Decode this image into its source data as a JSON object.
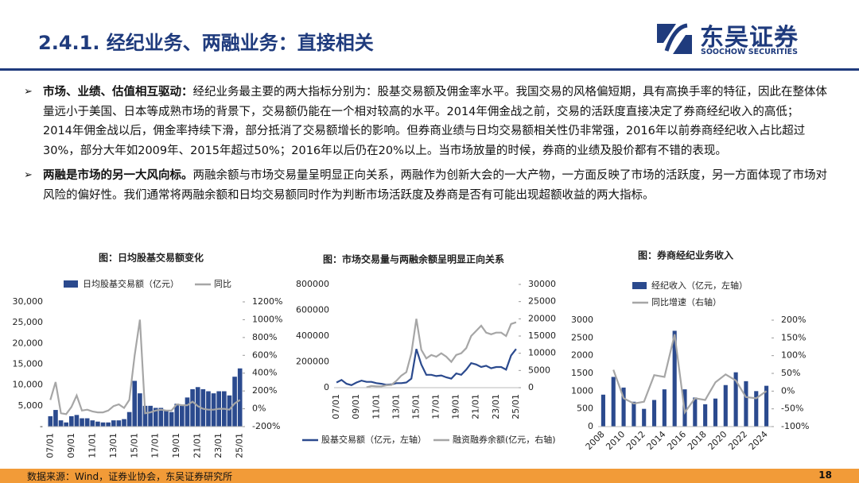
{
  "header": {
    "title": "2.4.1. 经纪业务、两融业务：直接相关",
    "logo": "东吴证券",
    "logo_en": "SOOCHOW SECURITIES"
  },
  "bullets": [
    {
      "lead": "市场、业绩、估值相互驱动：",
      "text": "经纪业务最主要的两大指标分别为：股基交易额及佣金率水平。我国交易的风格偏短期，具有高换手率的特征，因此在整体体量远小于美国、日本等成熟市场的背景下，交易额仍能在一个相对较高的水平。2014年佣金战之前，交易的活跃度直接决定了券商经纪收入的高低；2014年佣金战以后，佣金率持续下滑，部分抵消了交易额增长的影响。但券商业绩与日均交易额相关性仍非常强，2016年以前券商经纪收入占比超过30%，部分大年如2009年、2015年超过50%；2016年以后仍在20%以上。当市场放量的时候，券商的业绩及股价都有不错的表现。"
    },
    {
      "lead": "两融是市场的另一大风向标。",
      "text": "两融余额与市场交易量呈明显正向关系，两融作为创新大会的一大产物，一方面反映了市场的活跃度，另一方面体现了市场对风险的偏好性。我们通常将两融余额和日均交易额同时作为判断市场活跃度及券商是否有可能出现超额收益的两大指标。"
    }
  ],
  "chart_data": [
    {
      "type": "bar",
      "title": "图：日均股基交易额变化",
      "categories": [
        "07/01",
        null,
        null,
        null,
        "09/01",
        null,
        null,
        null,
        "11/01",
        null,
        null,
        null,
        "13/01",
        null,
        null,
        null,
        "15/01",
        null,
        null,
        null,
        "17/01",
        null,
        null,
        null,
        "19/01",
        null,
        null,
        null,
        "21/01",
        null,
        null,
        null,
        "23/01",
        null,
        null,
        null,
        "25/01"
      ],
      "series": [
        {
          "name": "日均股基交易额（亿元）",
          "type": "bar",
          "color": "#2b4a8e",
          "values": [
            2500,
            4000,
            1500,
            1000,
            2500,
            2800,
            2000,
            2000,
            1500,
            1200,
            1000,
            1000,
            1500,
            1500,
            1800,
            3500,
            11000,
            8000,
            5000,
            5000,
            4500,
            4500,
            3800,
            3500,
            5500,
            5000,
            7000,
            9000,
            9500,
            9000,
            8500,
            8000,
            8500,
            8500,
            7500,
            12000,
            14000
          ]
        },
        {
          "name": "同比",
          "type": "line",
          "axis": "y2",
          "color": "#a6a6a6",
          "values": [
            100,
            300,
            -50,
            -60,
            20,
            150,
            -20,
            -10,
            -30,
            -40,
            -40,
            -20,
            30,
            50,
            10,
            100,
            600,
            1000,
            -50,
            -40,
            -20,
            -10,
            -20,
            -20,
            50,
            40,
            40,
            80,
            30,
            0,
            -10,
            -10,
            0,
            0,
            -10,
            60,
            100
          ]
        }
      ],
      "ylim": [
        0,
        30000
      ],
      "yticks": [
        {
          "value": 0,
          "label": "-"
        },
        {
          "value": 5000,
          "label": "5,000"
        },
        {
          "value": 10000,
          "label": "10,000"
        },
        {
          "value": 15000,
          "label": "15,000"
        },
        {
          "value": 20000,
          "label": "20,000"
        },
        {
          "value": 25000,
          "label": "25,000"
        },
        {
          "value": 30000,
          "label": "30,000"
        }
      ],
      "y2lim": [
        -200,
        1200
      ],
      "y2ticks": [
        {
          "value": -200,
          "label": "-200%"
        },
        {
          "value": 0,
          "label": "0%"
        },
        {
          "value": 200,
          "label": "200%"
        },
        {
          "value": 400,
          "label": "400%"
        },
        {
          "value": 600,
          "label": "600%"
        },
        {
          "value": 800,
          "label": "800%"
        },
        {
          "value": 1000,
          "label": "1000%"
        },
        {
          "value": 1200,
          "label": "1200%"
        }
      ]
    },
    {
      "type": "line",
      "title": "图：市场交易量与两融余额呈明显正向关系",
      "categories": [
        "07/01",
        null,
        null,
        null,
        "09/01",
        null,
        null,
        null,
        "11/01",
        null,
        null,
        null,
        "13/01",
        null,
        null,
        null,
        "15/01",
        null,
        null,
        null,
        "17/01",
        null,
        null,
        null,
        "19/01",
        null,
        null,
        null,
        "21/01",
        null,
        null,
        null,
        "23/01",
        null,
        null,
        null,
        "25/01"
      ],
      "series": [
        {
          "name": "股基交易额（亿元，左轴）",
          "type": "line",
          "color": "#2b4a8e",
          "values": [
            40000,
            60000,
            30000,
            20000,
            40000,
            55000,
            45000,
            45000,
            35000,
            30000,
            22000,
            25000,
            35000,
            35000,
            40000,
            70000,
            300000,
            180000,
            100000,
            100000,
            90000,
            95000,
            80000,
            70000,
            110000,
            100000,
            140000,
            190000,
            180000,
            160000,
            170000,
            150000,
            160000,
            160000,
            140000,
            250000,
            300000
          ]
        },
        {
          "name": "融资融券余额(亿元，右轴)",
          "type": "line",
          "axis": "y2",
          "color": "#a6a6a6",
          "values": [
            null,
            null,
            null,
            null,
            null,
            null,
            100,
            500,
            400,
            400,
            700,
            800,
            2000,
            3500,
            4500,
            10000,
            20000,
            11000,
            8500,
            9500,
            9000,
            10000,
            9000,
            7500,
            9500,
            10000,
            11500,
            15000,
            16500,
            18000,
            16000,
            15500,
            16000,
            16000,
            15000,
            18500,
            19000
          ]
        }
      ],
      "ylim": [
        0,
        800000
      ],
      "yticks": [
        0,
        200000,
        400000,
        600000,
        800000
      ],
      "y2lim": [
        0,
        30000
      ],
      "y2ticks": [
        0,
        5000,
        10000,
        15000,
        20000,
        25000,
        30000
      ]
    },
    {
      "type": "bar",
      "title": "图：券商经纪业务收入",
      "categories": [
        "2008",
        null,
        "2010",
        null,
        "2012",
        null,
        "2014",
        null,
        "2016",
        null,
        "2018",
        null,
        "2020",
        null,
        "2022",
        null,
        "2024"
      ],
      "series": [
        {
          "name": "经纪收入（亿元，左轴）",
          "type": "bar",
          "color": "#2b4a8e",
          "values": [
            900,
            1400,
            1100,
            700,
            500,
            750,
            1050,
            2700,
            1050,
            820,
            630,
            790,
            1170,
            1530,
            1280,
            1000,
            1150
          ]
        },
        {
          "name": "同比增速（右轴）",
          "type": "line",
          "axis": "y2",
          "color": "#a6a6a6",
          "values": [
            null,
            60,
            -20,
            -35,
            -30,
            45,
            40,
            160,
            -60,
            -20,
            -25,
            25,
            47,
            30,
            -17,
            -20,
            0
          ]
        }
      ],
      "ylim": [
        0,
        3000
      ],
      "yticks": [
        0,
        500,
        1000,
        1500,
        2000,
        2500,
        3000
      ],
      "y2lim": [
        -100,
        200
      ],
      "y2ticks": [
        {
          "value": -100,
          "label": "-100%"
        },
        {
          "value": -50,
          "label": "-50%"
        },
        {
          "value": 0,
          "label": "0%"
        },
        {
          "value": 50,
          "label": "50%"
        },
        {
          "value": 100,
          "label": "100%"
        },
        {
          "value": 150,
          "label": "150%"
        },
        {
          "value": 200,
          "label": "200%"
        }
      ]
    }
  ],
  "footer": {
    "source": "数据来源：Wind，证券业协会，东吴证券研究所",
    "page": "18"
  }
}
